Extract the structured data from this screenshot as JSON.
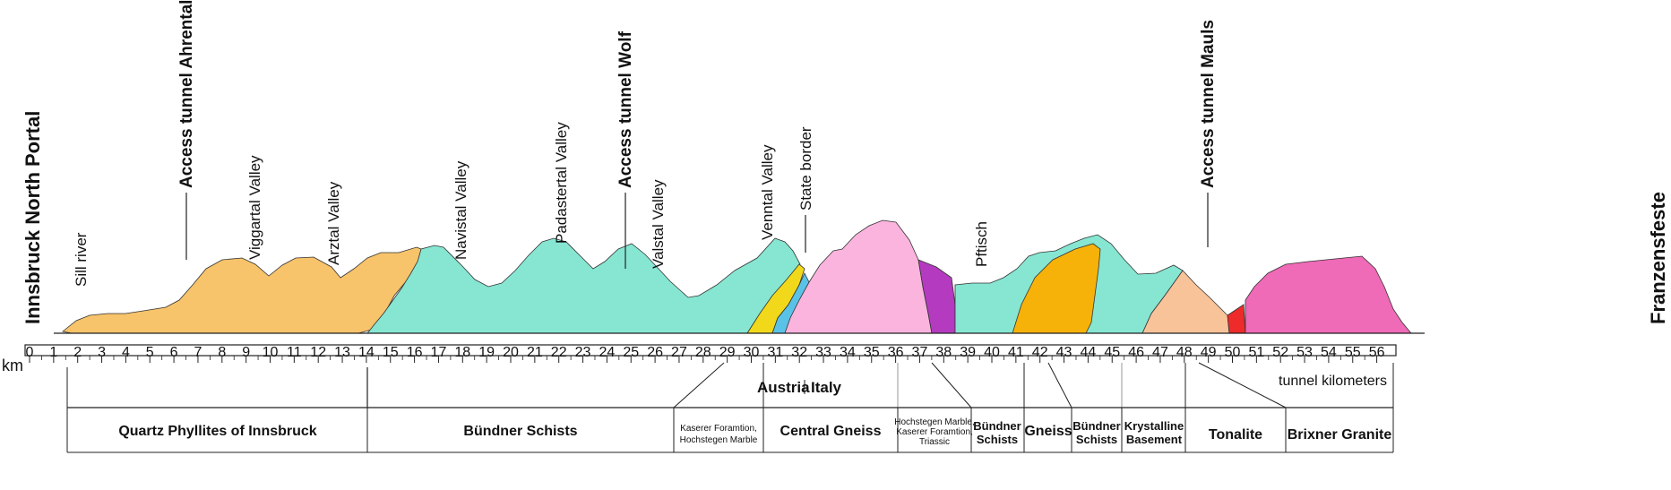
{
  "unit_label": "km",
  "km_ticks": [
    "0",
    "1",
    "2",
    "3",
    "4",
    "5",
    "6",
    "7",
    "8",
    "9",
    "10",
    "11",
    "12",
    "13",
    "14",
    "15",
    "16",
    "17",
    "18",
    "19",
    "20",
    "21",
    "22",
    "23",
    "24",
    "25",
    "26",
    "27",
    "28",
    "29",
    "30",
    "31",
    "32",
    "33",
    "34",
    "35",
    "36",
    "37",
    "38",
    "39",
    "40",
    "41",
    "42",
    "43",
    "44",
    "45",
    "46",
    "47",
    "48",
    "49",
    "50",
    "51",
    "52",
    "53",
    "54",
    "55",
    "56"
  ],
  "portals": {
    "north": "Innsbruck North Portal",
    "south": "Franzensfeste"
  },
  "features": [
    {
      "label": "Sill river",
      "bold": false
    },
    {
      "label": "Access tunnel Ahrental",
      "bold": true
    },
    {
      "label": "Viggartal Valley",
      "bold": false
    },
    {
      "label": "Arztal Valley",
      "bold": false
    },
    {
      "label": "Navistal Valley",
      "bold": false
    },
    {
      "label": "Padastertal Valley",
      "bold": false
    },
    {
      "label": "Access tunnel Wolf",
      "bold": true
    },
    {
      "label": "Valstal Valley",
      "bold": false
    },
    {
      "label": "Venntal Valley",
      "bold": false
    },
    {
      "label": "State border",
      "bold": false
    },
    {
      "label": "Pftisch",
      "bold": false
    },
    {
      "label": "Access tunnel Mauls",
      "bold": true
    }
  ],
  "countries": {
    "left": "Austria",
    "right": "Italy"
  },
  "tunnel_km_label": "tunnel kilometers",
  "geology": [
    {
      "label": "Quartz Phyllites of  Innsbruck"
    },
    {
      "label": "Bündner Schists"
    },
    {
      "label": "Kaserer Foramtion, Hochstegen Marble"
    },
    {
      "label": "Central Gneiss"
    },
    {
      "label": "Hochstegen Marble, Kaserer Foramtion, Triassic"
    },
    {
      "label": "Bündner Schists"
    },
    {
      "label": "Gneiss"
    },
    {
      "label": "Bündner Schists"
    },
    {
      "label": "Krystalline Basement"
    },
    {
      "label": "Tonalite"
    },
    {
      "label": "Brixner Granite"
    }
  ],
  "colors": {
    "quartz_phyllite": "#f7c36b",
    "bundner_schist": "#86e6d2",
    "kaserer_yellow": "#f2d81a",
    "marble_blue": "#5bc2e7",
    "central_gneiss_pink": "#fbb4de",
    "hochstegen_purple": "#b43bbf",
    "gneiss_orange": "#f7b20a",
    "krystalline_peach": "#f9c39a",
    "red_unit": "#ee2a2a",
    "tonalite_magenta": "#ef6ab7"
  }
}
